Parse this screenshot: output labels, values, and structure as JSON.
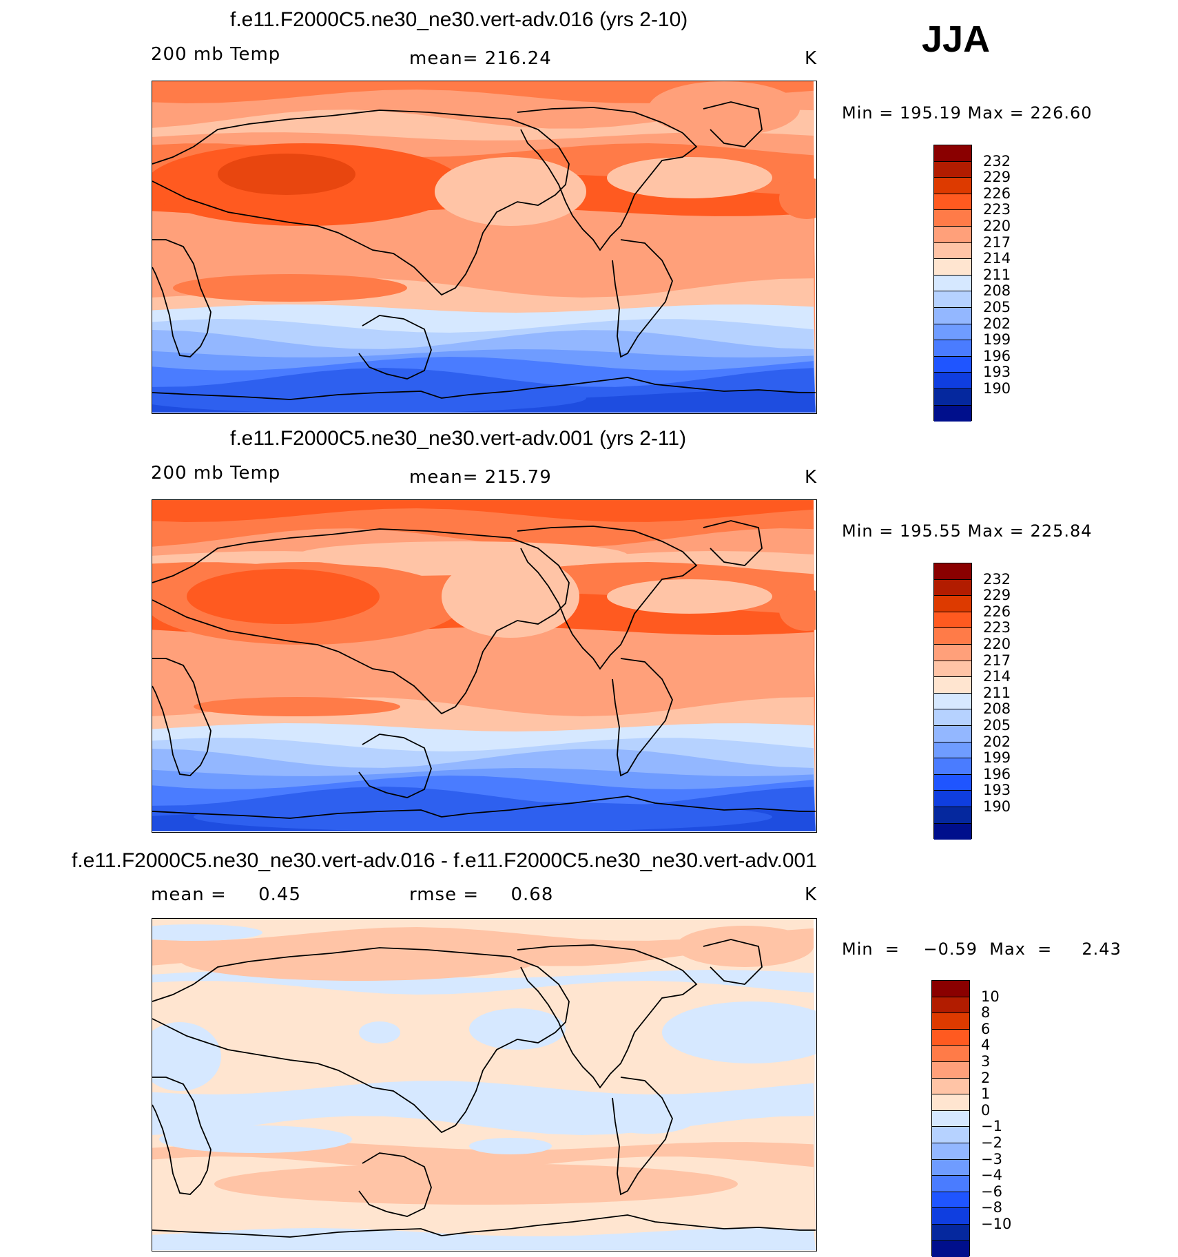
{
  "season": "JJA",
  "panels": [
    {
      "title": "f.e11.F2000C5.ne30_ne30.vert-adv.016 (yrs 2-10)",
      "left_label": "200 mb Temp",
      "center_label": "mean= 216.24",
      "units": "K",
      "minmax": "Min  =  195.19  Max  =  226.60",
      "bands": [
        "#ff7b48",
        "#ffa07a",
        "#ffc4a6",
        "#ffa07a",
        "#ff7b48",
        "#ff5a20",
        "#ffa07a",
        "#ffa07a",
        "#ffc4a6",
        "#d6e8ff",
        "#b6d2ff",
        "#93b7ff",
        "#6f9cff",
        "#4a7cff",
        "#2e60ef",
        "#1e4de0"
      ],
      "colorbar": {
        "labels": [
          "232",
          "229",
          "226",
          "223",
          "220",
          "217",
          "214",
          "211",
          "208",
          "205",
          "202",
          "199",
          "196",
          "193",
          "190"
        ],
        "colors": [
          "#8a0000",
          "#b21c00",
          "#dd3a00",
          "#ff5a20",
          "#ff7b48",
          "#ffa07a",
          "#ffc4a6",
          "#ffe5d0",
          "#d6e8ff",
          "#b6d2ff",
          "#93b7ff",
          "#6f9cff",
          "#4a7cff",
          "#1f55ff",
          "#0f3ee0",
          "#05289e",
          "#000f8c"
        ]
      }
    },
    {
      "title": "f.e11.F2000C5.ne30_ne30.vert-adv.001 (yrs 2-11)",
      "left_label": "200 mb Temp",
      "center_label": "mean= 215.79",
      "units": "K",
      "minmax": "Min  =  195.55  Max  =  225.84",
      "bands": [
        "#ff5a20",
        "#ff7b48",
        "#ffa07a",
        "#ffc4a6",
        "#ff7b48",
        "#ff5a20",
        "#ffa07a",
        "#ffa07a",
        "#ffc4a6",
        "#d6e8ff",
        "#b6d2ff",
        "#93b7ff",
        "#6f9cff",
        "#4a7cff",
        "#2e60ef",
        "#1e4de0"
      ],
      "colorbar": {
        "labels": [
          "232",
          "229",
          "226",
          "223",
          "220",
          "217",
          "214",
          "211",
          "208",
          "205",
          "202",
          "199",
          "196",
          "193",
          "190"
        ],
        "colors": [
          "#8a0000",
          "#b21c00",
          "#dd3a00",
          "#ff5a20",
          "#ff7b48",
          "#ffa07a",
          "#ffc4a6",
          "#ffe5d0",
          "#d6e8ff",
          "#b6d2ff",
          "#93b7ff",
          "#6f9cff",
          "#4a7cff",
          "#1f55ff",
          "#0f3ee0",
          "#05289e",
          "#000f8c"
        ]
      }
    },
    {
      "title": "f.e11.F2000C5.ne30_ne30.vert-adv.016 - f.e11.F2000C5.ne30_ne30.vert-adv.001",
      "left_label": "mean =     0.45",
      "center_label": "rmse =     0.68",
      "units": "K",
      "minmax": "Min  =    −0.59  Max  =     2.43",
      "bands": [
        "#ffe5d0",
        "#ffc4a6",
        "#ffe5d0",
        "#d6e8ff",
        "#ffe5d0",
        "#ffe5d0",
        "#ffe5d0",
        "#d6e8ff",
        "#ffe5d0",
        "#ffc4a6",
        "#ffe5d0",
        "#ffe5d0",
        "#ffe5d0",
        "#ffe5d0",
        "#ffe5d0",
        "#d6e8ff"
      ],
      "colorbar": {
        "labels": [
          "10",
          "8",
          "6",
          "4",
          "3",
          "2",
          "1",
          "0",
          "−1",
          "−2",
          "−3",
          "−4",
          "−6",
          "−8",
          "−10"
        ],
        "colors": [
          "#8a0000",
          "#b21c00",
          "#dd3a00",
          "#ff5a20",
          "#ff7b48",
          "#ffa07a",
          "#ffc4a6",
          "#ffe5d0",
          "#d6e8ff",
          "#b6d2ff",
          "#93b7ff",
          "#6f9cff",
          "#4a7cff",
          "#1f55ff",
          "#0f3ee0",
          "#05289e",
          "#000f8c"
        ]
      }
    }
  ]
}
